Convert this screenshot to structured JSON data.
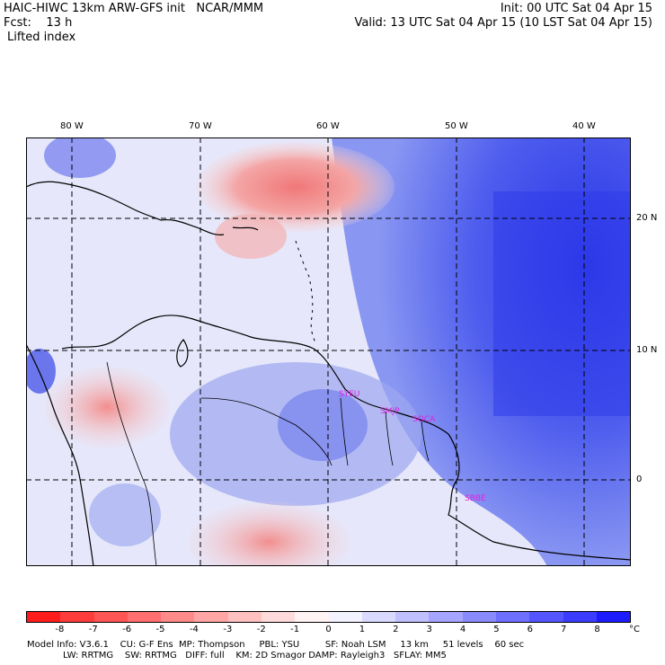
{
  "header": {
    "model_title": "HAIC-HIWC 13km ARW-GFS init   NCAR/MMM",
    "fcst_label": "Fcst:    13 h",
    "field_name": "Lifted index",
    "init_time": "Init: 00 UTC Sat 04 Apr 15",
    "valid_time": "Valid: 13 UTC Sat 04 Apr 15 (10 LST Sat 04 Apr 15)"
  },
  "map": {
    "longitude_labels": [
      "80 W",
      "70 W",
      "60 W",
      "50 W",
      "40 W"
    ],
    "latitude_labels": [
      "20 N",
      "10 N",
      "0"
    ],
    "station_labels": [
      "SYEU",
      "SMJP",
      "SOCA",
      "SBBE"
    ],
    "station_color": "#e020e0",
    "colors": {
      "ocean_blue": "#6f7ff0",
      "deep_blue": "#2a35e8",
      "red": "#f0a0a0",
      "neutral": "#e8e8f8"
    }
  },
  "colorbar": {
    "tick_labels": [
      "-8",
      "-7",
      "-6",
      "-5",
      "-4",
      "-3",
      "-2",
      "-1",
      "0",
      "1",
      "2",
      "3",
      "4",
      "5",
      "6",
      "7",
      "8"
    ],
    "unit": "°C",
    "colors": [
      "#ff1c1c",
      "#ff3c3c",
      "#ff5555",
      "#ff6f6f",
      "#ff8a8a",
      "#ffa5a5",
      "#ffc0c0",
      "#ffdada",
      "#fff3f3",
      "#f3f3ff",
      "#dadaff",
      "#c0c0ff",
      "#a5a5ff",
      "#8a8aff",
      "#6f6fff",
      "#5555ff",
      "#3c3cff",
      "#1c1cff"
    ]
  },
  "model_info": {
    "line1": "Model Info: V3.6.1    CU: G-F Ens  MP: Thompson     PBL: YSU         SF: Noah LSM     13 km     51 levels    60 sec",
    "line2": "LW: RRTMG    SW: RRTMG   DIFF: full    KM: 2D Smagor DAMP: Rayleigh3   SFLAY: MM5"
  }
}
